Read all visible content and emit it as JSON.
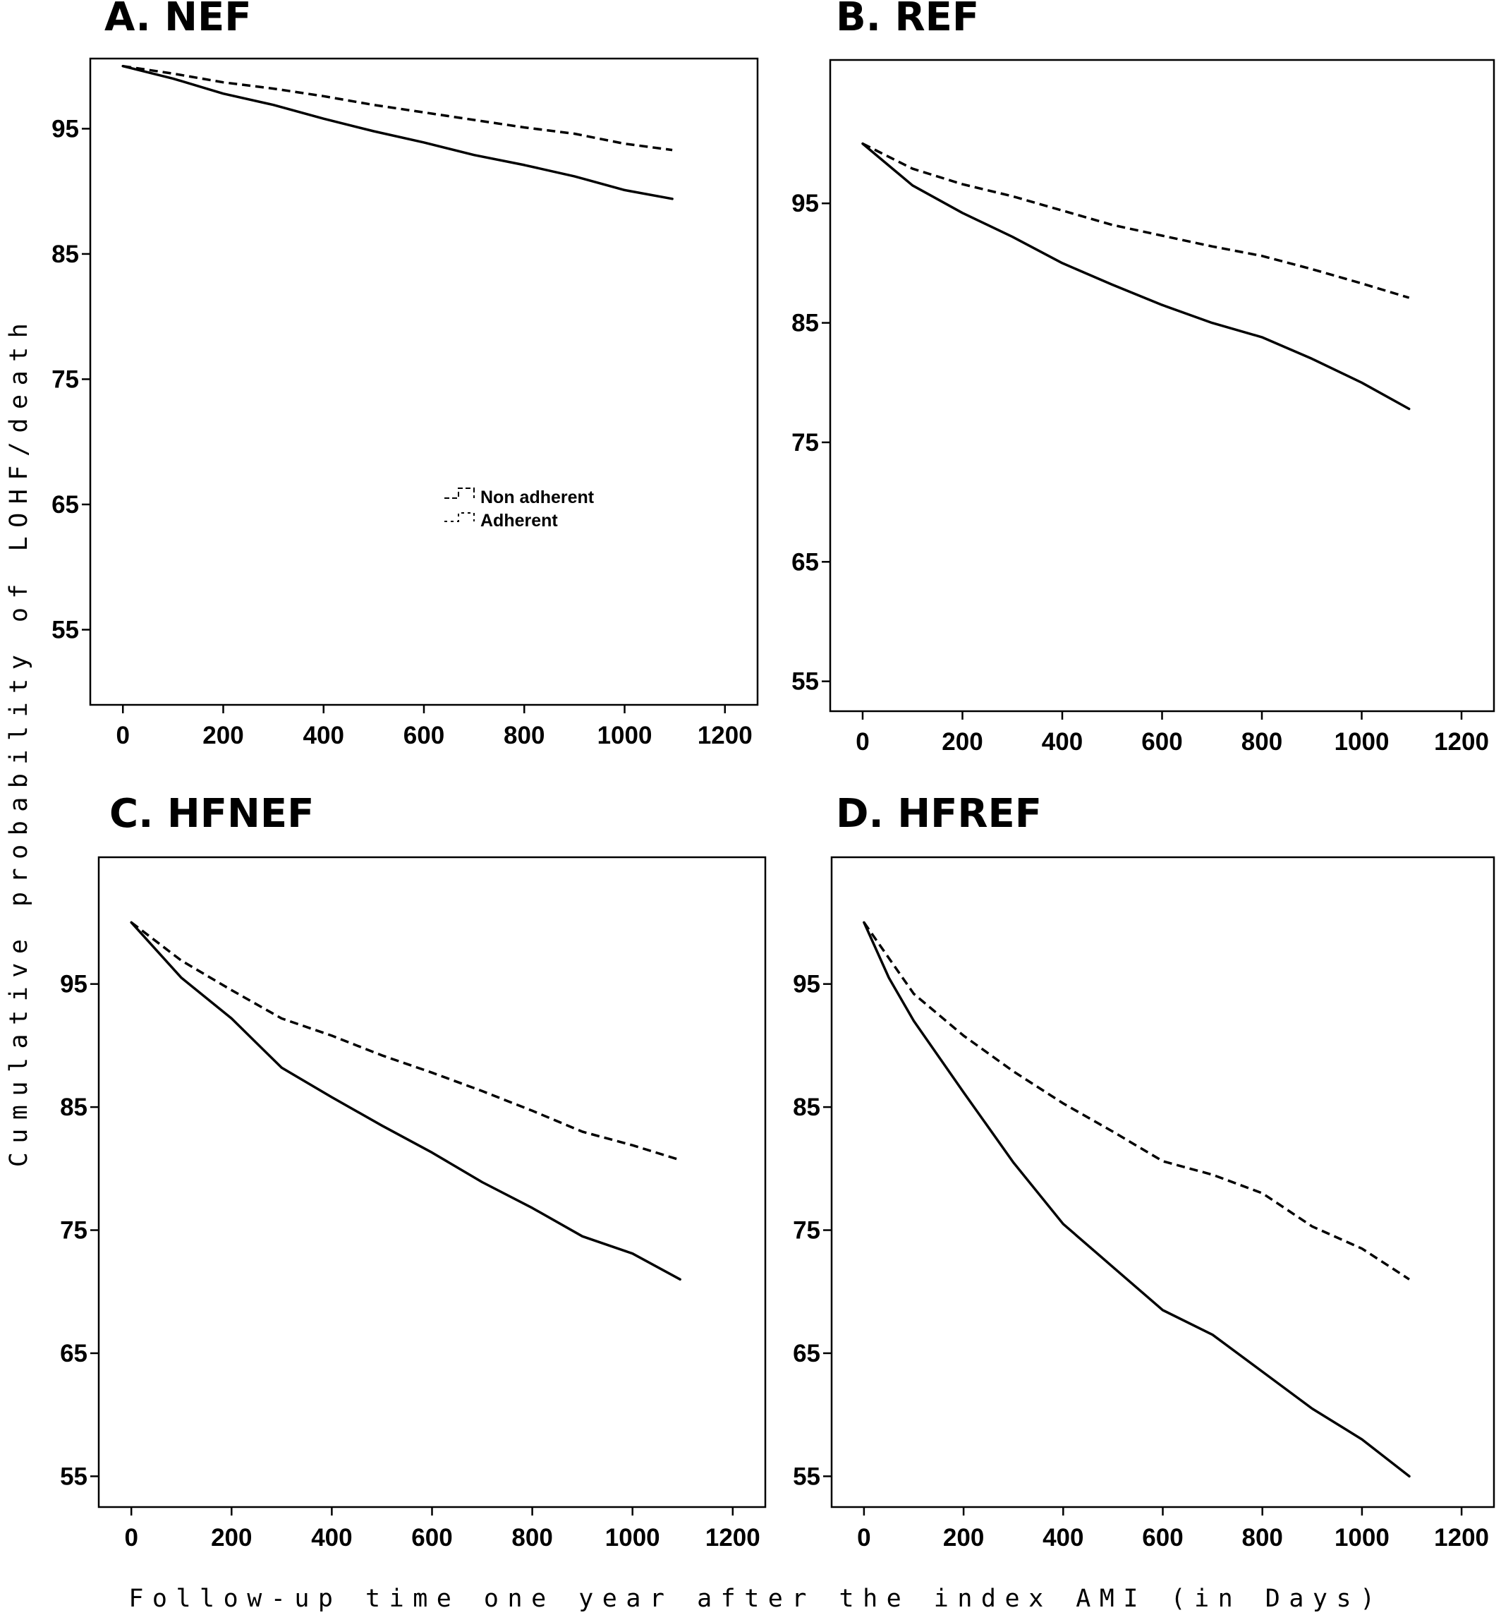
{
  "figure": {
    "ylabel": "Cumulative probability of LOHF/death",
    "xlabel": "Follow-up time one year after the index AMI (in Days)"
  },
  "chart_data": [
    {
      "type": "line",
      "title": "A. NEF",
      "xlim": [
        -65,
        1265
      ],
      "ylim": [
        49,
        100.6
      ],
      "xticks": [
        0,
        200,
        400,
        600,
        800,
        1000,
        1200
      ],
      "yticks": [
        55,
        65,
        75,
        85,
        95
      ],
      "legend": {
        "position": "center",
        "entries": [
          "Non adherent",
          "Adherent"
        ]
      },
      "series": [
        {
          "name": "Non adherent",
          "style": "solid",
          "x": [
            0,
            100,
            200,
            300,
            400,
            500,
            600,
            700,
            800,
            900,
            1000,
            1095
          ],
          "y": [
            100,
            99,
            97.8,
            96.9,
            95.8,
            94.8,
            93.9,
            92.9,
            92.1,
            91.2,
            90.1,
            89.4
          ]
        },
        {
          "name": "Adherent",
          "style": "dashed",
          "x": [
            0,
            100,
            200,
            300,
            400,
            500,
            600,
            700,
            800,
            900,
            1000,
            1095
          ],
          "y": [
            100,
            99.4,
            98.7,
            98.2,
            97.6,
            96.9,
            96.3,
            95.7,
            95.1,
            94.6,
            93.8,
            93.3
          ]
        }
      ]
    },
    {
      "type": "line",
      "title": "B. REF",
      "xlim": [
        -65,
        1265
      ],
      "ylim": [
        52.5,
        107
      ],
      "xticks": [
        0,
        200,
        400,
        600,
        800,
        1000,
        1200
      ],
      "yticks": [
        55,
        65,
        75,
        85,
        95
      ],
      "series": [
        {
          "name": "Non adherent",
          "style": "solid",
          "x": [
            0,
            100,
            200,
            300,
            400,
            500,
            600,
            700,
            800,
            900,
            1000,
            1095
          ],
          "y": [
            100,
            96.5,
            94.2,
            92.2,
            90,
            88.2,
            86.5,
            85,
            83.8,
            82,
            80,
            77.8
          ]
        },
        {
          "name": "Adherent",
          "style": "dashed",
          "x": [
            0,
            100,
            200,
            300,
            400,
            500,
            600,
            700,
            800,
            900,
            1000,
            1095
          ],
          "y": [
            100,
            97.9,
            96.6,
            95.6,
            94.4,
            93.2,
            92.3,
            91.4,
            90.6,
            89.5,
            88.3,
            87.1
          ]
        }
      ]
    },
    {
      "type": "line",
      "title": "C. HFNEF",
      "xlim": [
        -65,
        1265
      ],
      "ylim": [
        52.5,
        105.3
      ],
      "xticks": [
        0,
        200,
        400,
        600,
        800,
        1000,
        1200
      ],
      "yticks": [
        55,
        65,
        75,
        85,
        95
      ],
      "series": [
        {
          "name": "Non adherent",
          "style": "solid",
          "x": [
            0,
            100,
            200,
            300,
            400,
            500,
            600,
            700,
            800,
            900,
            1000,
            1095
          ],
          "y": [
            100,
            95.5,
            92.2,
            88.2,
            85.8,
            83.5,
            81.3,
            78.9,
            76.8,
            74.5,
            73.1,
            71
          ]
        },
        {
          "name": "Adherent",
          "style": "dashed",
          "x": [
            0,
            100,
            200,
            300,
            400,
            500,
            600,
            700,
            800,
            900,
            1000,
            1095
          ],
          "y": [
            100,
            96.9,
            94.5,
            92.2,
            90.8,
            89.2,
            87.8,
            86.3,
            84.7,
            83,
            81.9,
            80.7
          ]
        }
      ]
    },
    {
      "type": "line",
      "title": "D. HFREF",
      "xlim": [
        -65,
        1265
      ],
      "ylim": [
        52.5,
        105.3
      ],
      "xticks": [
        0,
        200,
        400,
        600,
        800,
        1000,
        1200
      ],
      "yticks": [
        55,
        65,
        75,
        85,
        95
      ],
      "series": [
        {
          "name": "Non adherent",
          "style": "solid",
          "x": [
            0,
            50,
            100,
            200,
            300,
            400,
            500,
            600,
            700,
            800,
            900,
            1000,
            1095
          ],
          "y": [
            100,
            95.5,
            92,
            86.2,
            80.5,
            75.5,
            72,
            68.5,
            66.5,
            63.5,
            60.5,
            58,
            55
          ]
        },
        {
          "name": "Adherent",
          "style": "dashed",
          "x": [
            0,
            100,
            200,
            300,
            400,
            500,
            600,
            700,
            800,
            900,
            1000,
            1095
          ],
          "y": [
            100,
            94.2,
            90.8,
            87.9,
            85.3,
            83,
            80.6,
            79.5,
            78,
            75.3,
            73.5,
            71
          ]
        }
      ]
    }
  ]
}
